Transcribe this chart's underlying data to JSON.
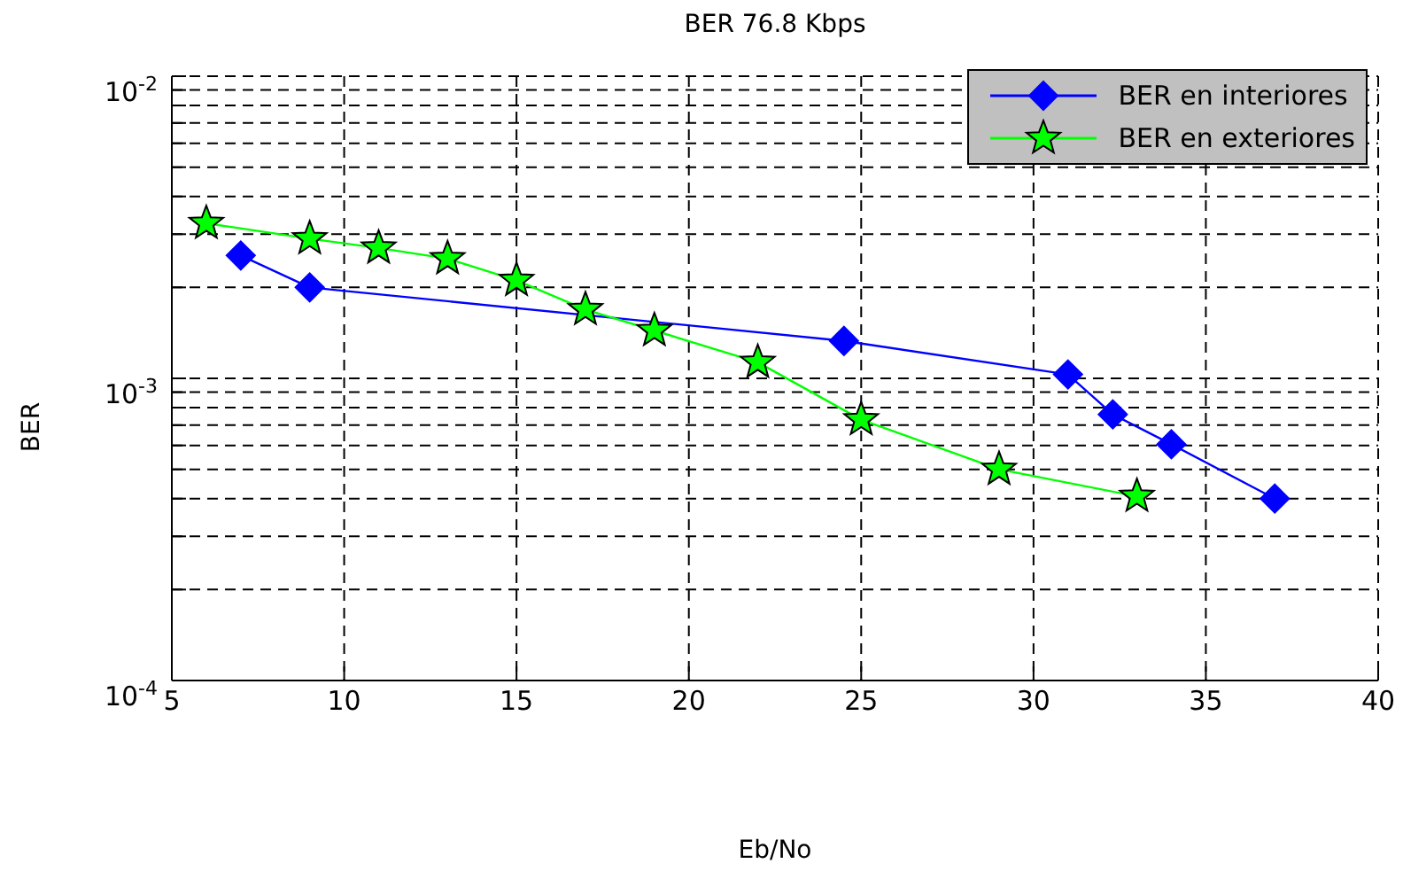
{
  "chart_data": {
    "type": "line",
    "title": "BER 76.8 Kbps",
    "xlabel": "Eb/No",
    "ylabel": "BER",
    "log": "y",
    "grid": true,
    "legend": "top right",
    "xlim": [
      5,
      40
    ],
    "xticks": [
      5,
      10,
      15,
      20,
      25,
      30,
      35,
      40
    ],
    "ylim": [
      0.0001,
      0.01
    ],
    "yticks": [
      {
        "value": 0.0001,
        "label": "10$^{-4}$"
      },
      {
        "value": 0.0002,
        "label": null
      },
      {
        "value": 0.0003,
        "label": null
      },
      {
        "value": 0.0004,
        "label": null
      },
      {
        "value": 0.0005,
        "label": null
      },
      {
        "value": 0.0006,
        "label": null
      },
      {
        "value": 0.0007,
        "label": null
      },
      {
        "value": 0.0008,
        "label": null
      },
      {
        "value": 0.0009,
        "label": null
      },
      {
        "value": 0.001,
        "label": "10$^{-3}$"
      },
      {
        "value": 0.002,
        "label": null
      },
      {
        "value": 0.003,
        "label": null
      },
      {
        "value": 0.004,
        "label": null
      },
      {
        "value": 0.005,
        "label": null
      },
      {
        "value": 0.006,
        "label": null
      },
      {
        "value": 0.007,
        "label": null
      },
      {
        "value": 0.008,
        "label": null
      },
      {
        "value": 0.009,
        "label": null
      },
      {
        "value": 0.01,
        "label": "10$^{-2}$"
      }
    ],
    "series": [
      {
        "name": "BER en interiores",
        "color": "#0000ff",
        "marker": "diamond",
        "x": [
          7,
          9,
          24.5,
          31,
          32.3,
          34,
          37
        ],
        "values": [
          0.00255,
          0.002,
          0.00133,
          0.00103,
          0.00076,
          0.000605,
          0.0004
        ]
      },
      {
        "name": "BER en exteriores",
        "color": "#00ff00",
        "marker": "star",
        "x": [
          6,
          9,
          11,
          13,
          15,
          17,
          19,
          22,
          25,
          29,
          33
        ],
        "values": [
          0.00326,
          0.0029,
          0.0027,
          0.00249,
          0.00211,
          0.00169,
          0.00144,
          0.00113,
          0.00073,
          0.0005,
          0.000407
        ]
      }
    ]
  }
}
